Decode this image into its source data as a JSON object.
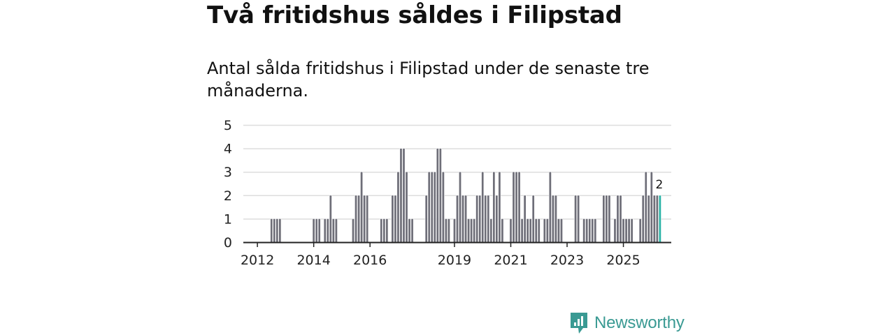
{
  "title": "Två fritidshus såldes i Filipstad",
  "subtitle": "Antal sålda fritidshus i Filipstad under de senaste tre månaderna.",
  "brand": "Newsworthy",
  "colors": {
    "bar": "#6e6e78",
    "highlight": "#2ab3a6",
    "grid": "#dddddd",
    "axis": "#222222",
    "brand": "#3a9a93"
  },
  "chart_data": {
    "type": "bar",
    "title": "Antal sålda fritidshus i Filipstad under de senaste tre månaderna.",
    "xlabel": "",
    "ylabel": "",
    "ylim": [
      0,
      5
    ],
    "yticks": [
      "0",
      "1",
      "2",
      "3",
      "4",
      "5"
    ],
    "x_range": [
      2011.5,
      2026.7
    ],
    "xticks": [
      {
        "label": "2012",
        "x": 2012
      },
      {
        "label": "2014",
        "x": 2014
      },
      {
        "label": "2016",
        "x": 2016
      },
      {
        "label": "2019",
        "x": 2019
      },
      {
        "label": "2021",
        "x": 2021
      },
      {
        "label": "2023",
        "x": 2023
      },
      {
        "label": "2025",
        "x": 2025
      }
    ],
    "bar_width_years": 0.083,
    "series": [
      {
        "name": "Sålda fritidshus",
        "points": [
          [
            2012.5,
            1
          ],
          [
            2012.6,
            1
          ],
          [
            2012.7,
            1
          ],
          [
            2012.8,
            1
          ],
          [
            2014.0,
            1
          ],
          [
            2014.1,
            1
          ],
          [
            2014.2,
            1
          ],
          [
            2014.4,
            1
          ],
          [
            2014.5,
            1
          ],
          [
            2014.6,
            2
          ],
          [
            2014.7,
            1
          ],
          [
            2014.8,
            1
          ],
          [
            2015.4,
            1
          ],
          [
            2015.5,
            2
          ],
          [
            2015.6,
            2
          ],
          [
            2015.7,
            3
          ],
          [
            2015.8,
            2
          ],
          [
            2015.9,
            2
          ],
          [
            2016.0,
            0
          ],
          [
            2016.1,
            0
          ],
          [
            2016.4,
            1
          ],
          [
            2016.5,
            1
          ],
          [
            2016.6,
            1
          ],
          [
            2016.8,
            2
          ],
          [
            2016.9,
            2
          ],
          [
            2017.0,
            3
          ],
          [
            2017.1,
            4
          ],
          [
            2017.2,
            4
          ],
          [
            2017.3,
            3
          ],
          [
            2017.4,
            1
          ],
          [
            2017.5,
            1
          ],
          [
            2018.0,
            2
          ],
          [
            2018.1,
            3
          ],
          [
            2018.2,
            3
          ],
          [
            2018.3,
            3
          ],
          [
            2018.4,
            4
          ],
          [
            2018.5,
            4
          ],
          [
            2018.6,
            3
          ],
          [
            2018.7,
            1
          ],
          [
            2018.8,
            1
          ],
          [
            2018.9,
            0
          ],
          [
            2019.0,
            1
          ],
          [
            2019.1,
            2
          ],
          [
            2019.2,
            3
          ],
          [
            2019.3,
            2
          ],
          [
            2019.4,
            2
          ],
          [
            2019.5,
            1
          ],
          [
            2019.6,
            1
          ],
          [
            2019.7,
            1
          ],
          [
            2019.8,
            2
          ],
          [
            2019.9,
            2
          ],
          [
            2020.0,
            3
          ],
          [
            2020.1,
            2
          ],
          [
            2020.2,
            2
          ],
          [
            2020.3,
            1
          ],
          [
            2020.4,
            3
          ],
          [
            2020.5,
            2
          ],
          [
            2020.6,
            3
          ],
          [
            2020.7,
            1
          ],
          [
            2021.0,
            1
          ],
          [
            2021.1,
            3
          ],
          [
            2021.2,
            3
          ],
          [
            2021.3,
            3
          ],
          [
            2021.4,
            1
          ],
          [
            2021.5,
            2
          ],
          [
            2021.6,
            1
          ],
          [
            2021.7,
            1
          ],
          [
            2021.8,
            2
          ],
          [
            2021.9,
            1
          ],
          [
            2022.0,
            1
          ],
          [
            2022.2,
            1
          ],
          [
            2022.3,
            1
          ],
          [
            2022.4,
            3
          ],
          [
            2022.5,
            2
          ],
          [
            2022.6,
            2
          ],
          [
            2022.7,
            1
          ],
          [
            2022.8,
            1
          ],
          [
            2023.3,
            2
          ],
          [
            2023.4,
            2
          ],
          [
            2023.6,
            1
          ],
          [
            2023.7,
            1
          ],
          [
            2023.8,
            1
          ],
          [
            2023.9,
            1
          ],
          [
            2024.0,
            1
          ],
          [
            2024.3,
            2
          ],
          [
            2024.4,
            2
          ],
          [
            2024.5,
            2
          ],
          [
            2024.7,
            1
          ],
          [
            2024.8,
            2
          ],
          [
            2024.9,
            2
          ],
          [
            2025.0,
            1
          ],
          [
            2025.1,
            1
          ],
          [
            2025.2,
            1
          ],
          [
            2025.3,
            1
          ],
          [
            2025.6,
            1
          ],
          [
            2025.7,
            2
          ],
          [
            2025.8,
            3
          ],
          [
            2025.9,
            2
          ],
          [
            2026.0,
            3
          ],
          [
            2026.1,
            2
          ],
          [
            2026.2,
            2
          ],
          [
            2026.3,
            2
          ]
        ]
      }
    ],
    "highlight": {
      "x": 2026.3,
      "value": 2,
      "label": "2"
    }
  }
}
